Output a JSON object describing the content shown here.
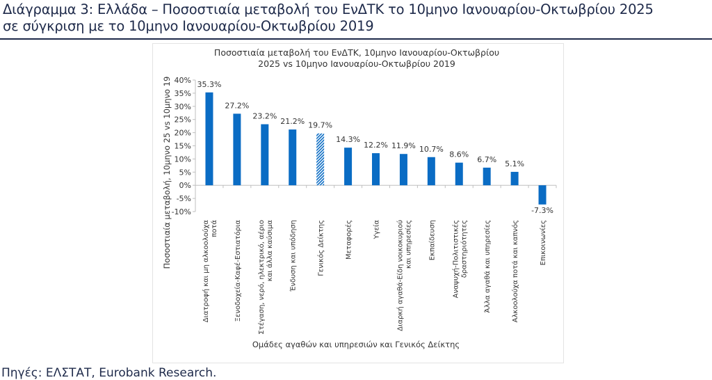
{
  "header": {
    "title_line1": "Διάγραμμα 3: Ελλάδα – Ποσοστιαία μεταβολή του ΕνΔΤΚ το 10μηνο Ιανουαρίου-Οκτωβρίου 2025",
    "title_line2": "σε σύγκριση με το 10μηνο Ιανουαρίου-Οκτωβρίου 2019"
  },
  "source": "Πηγές: ΕΛΣΤΑΤ, Eurobank Research.",
  "colors": {
    "bar": "#0a6cc4",
    "axis": "#bfbfbf",
    "text": "#333333"
  },
  "chart_data": {
    "type": "bar",
    "title": [
      "Ποσοστιαία μεταβολή του ΕνΔΤΚ, 10μηνο Ιανουαρίου-Οκτωβρίου",
      "2025 vs 10μηνο Ιανουαρίου-Οκτωβρίου 2019"
    ],
    "xlabel": "Ομάδες αγαθών και υπηρεσιών και Γενικός Δείκτης",
    "ylabel": "Ποσοστιαία μεταβολή, 10μηνο 25 vs 10μηνο 19",
    "ylim": [
      -10,
      40
    ],
    "yticks": [
      -10,
      -5,
      0,
      5,
      10,
      15,
      20,
      25,
      30,
      35,
      40
    ],
    "ytick_labels": [
      "-10%",
      "-5%",
      "0%",
      "5%",
      "10%",
      "15%",
      "20%",
      "25%",
      "30%",
      "35%",
      "40%"
    ],
    "categories": [
      [
        "Διατροφή και μη αλκοολούχα",
        "ποτά"
      ],
      [
        "Ξενοδοχεία-Καφέ-Εστιατόρια"
      ],
      [
        "Στέγαση, νερό, ηλεκτρικό, αέριο",
        "και άλλα καύσιμα"
      ],
      [
        "Ένδυση και υπόδηση"
      ],
      [
        "Γενικός Δείκτης"
      ],
      [
        "Μεταφορές"
      ],
      [
        "Υγεία"
      ],
      [
        "Διαρκή αγαθά-Είδη νοικοκυριού",
        "και υπηρεσίες"
      ],
      [
        "Εκπαίδευση"
      ],
      [
        "Αναψυχή-Πολιτιστικές",
        "δραστηριότητες"
      ],
      [
        "Άλλα αγαθά και υπηρεσίες"
      ],
      [
        "Αλκοολούχα ποτά και καπνός"
      ],
      [
        "Επικοινωνίες"
      ]
    ],
    "values": [
      35.3,
      27.2,
      23.2,
      21.2,
      19.7,
      14.3,
      12.2,
      11.9,
      10.7,
      8.6,
      6.7,
      5.1,
      -7.3
    ],
    "data_labels": [
      "35.3%",
      "27.2%",
      "23.2%",
      "21.2%",
      "19.7%",
      "14.3%",
      "12.2%",
      "11.9%",
      "10.7%",
      "8.6%",
      "6.7%",
      "5.1%",
      "-7.3%"
    ],
    "highlight_index": 4,
    "grid": false,
    "legend": "none"
  }
}
